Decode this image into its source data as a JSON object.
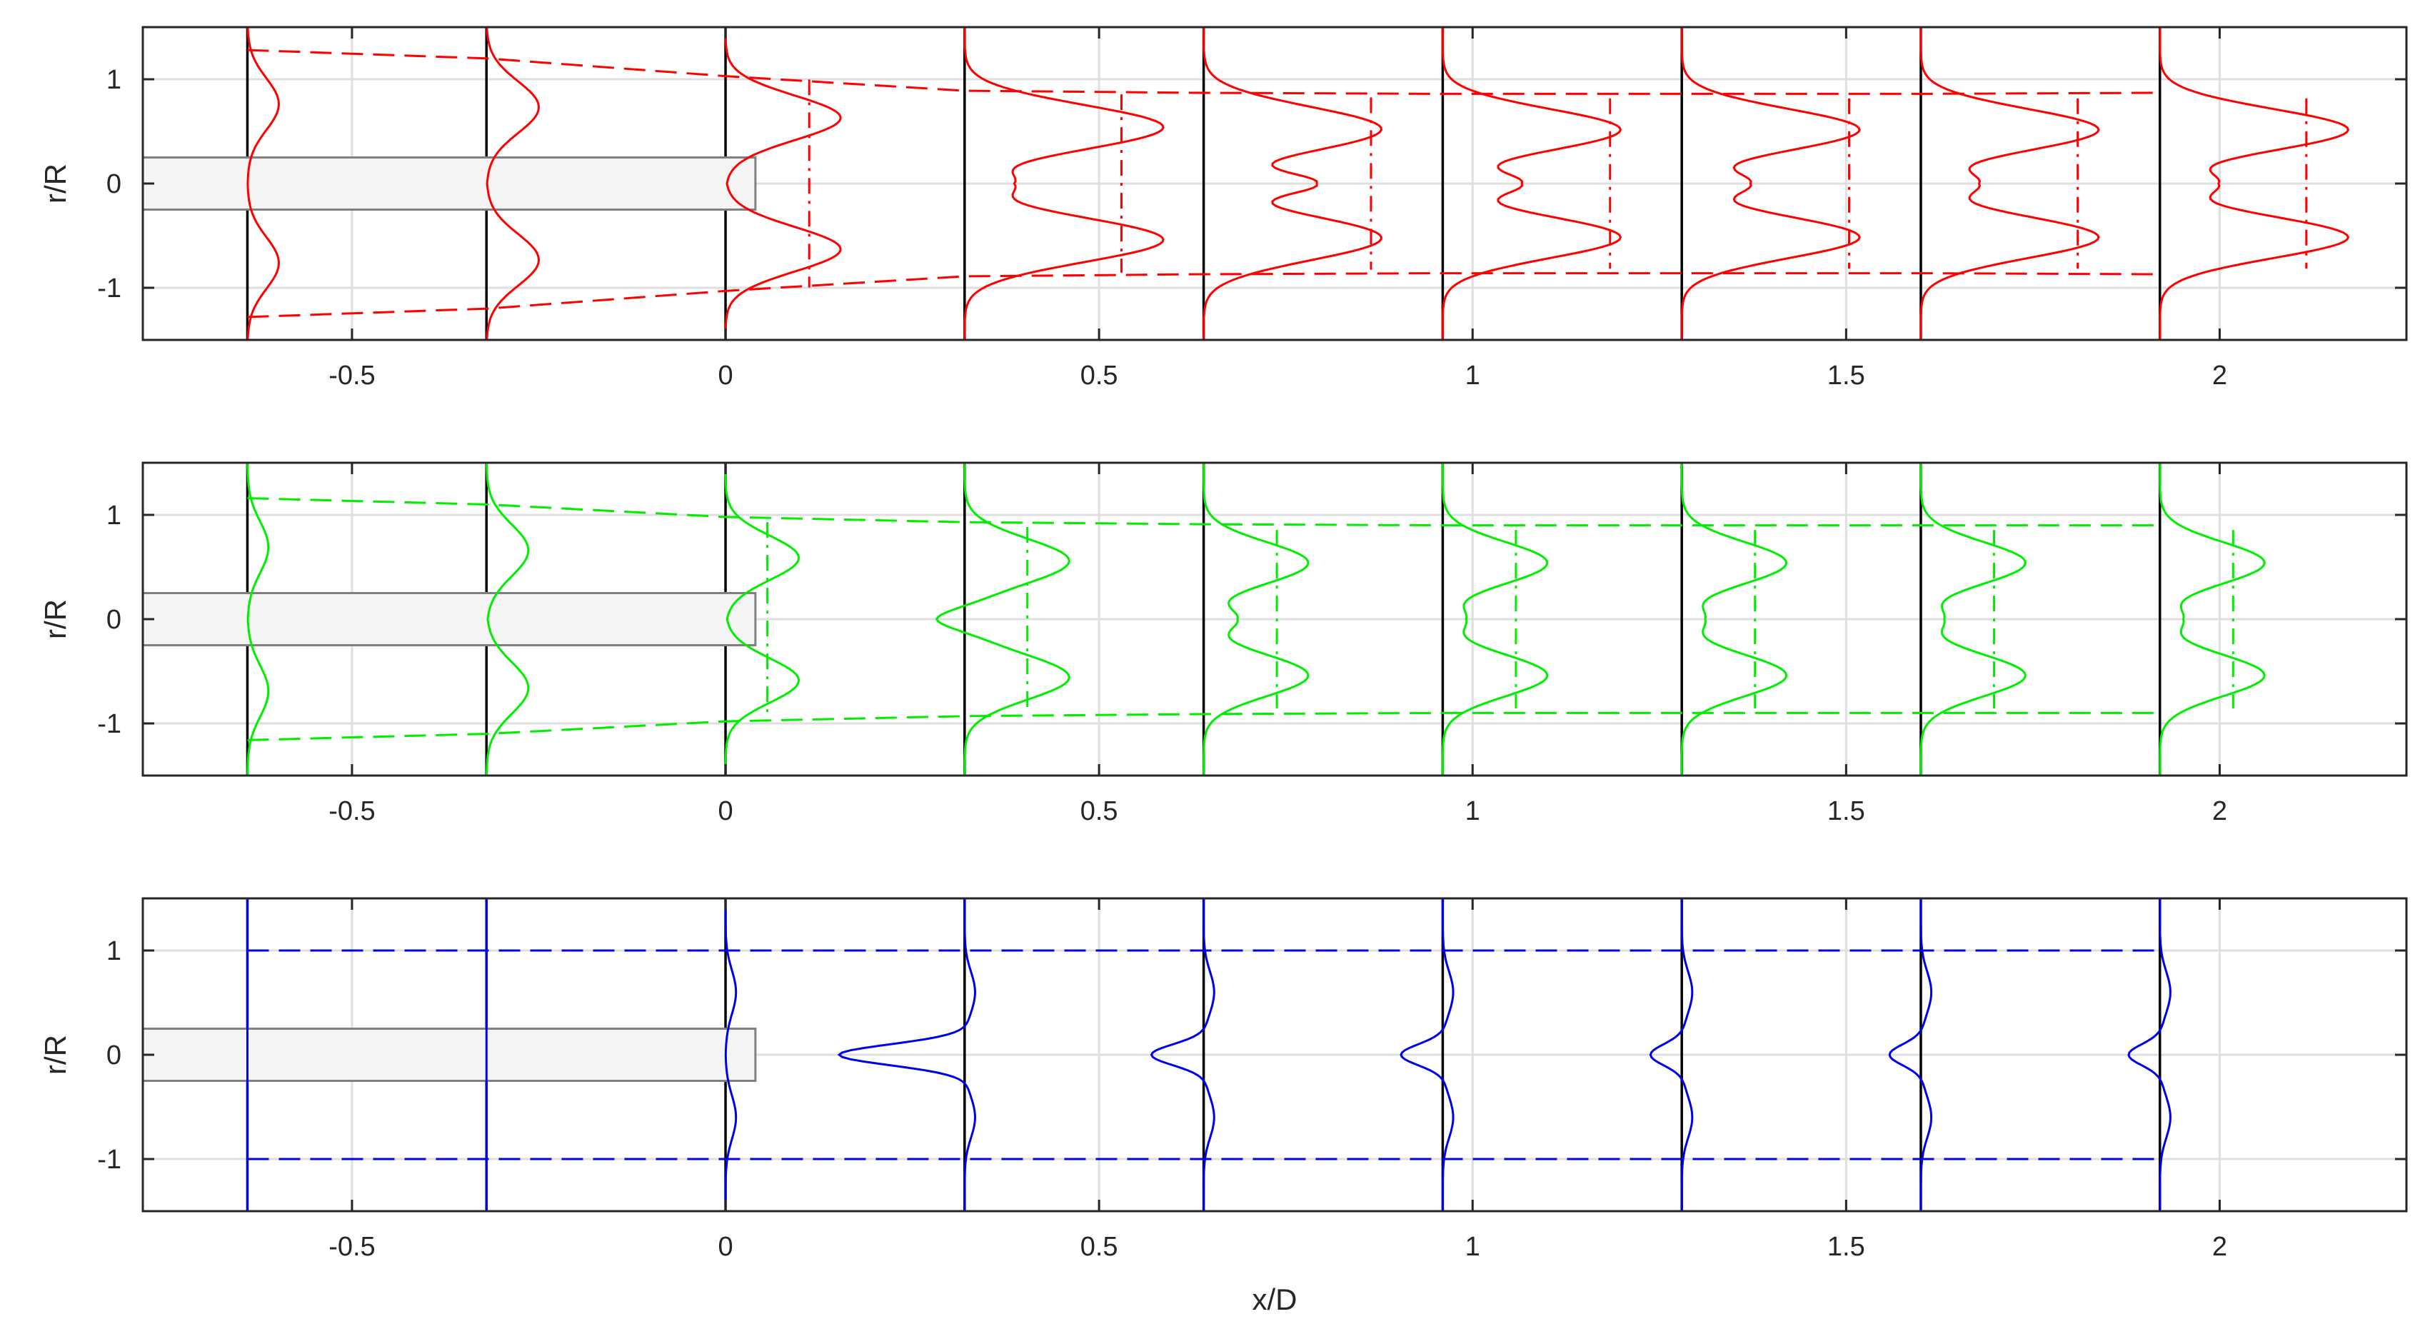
{
  "chart_data": [
    {
      "type": "line",
      "panel": "top",
      "color": "#ff0000",
      "xlabel": "",
      "ylabel": "r/R",
      "xlim": [
        -0.78,
        2.25
      ],
      "ylim": [
        -1.5,
        1.5
      ],
      "xticks": [
        -0.5,
        0,
        0.5,
        1,
        1.5,
        2
      ],
      "xtick_labels": [
        "-0.5",
        "0",
        "0.5",
        "1",
        "1.5",
        "2"
      ],
      "yticks": [
        -1,
        0,
        1
      ],
      "ytick_labels": [
        "-1",
        "0",
        "1"
      ],
      "grid": true,
      "body": {
        "x0": -0.78,
        "x1": 0.04,
        "r": 0.25
      },
      "stations": [
        -0.64,
        -0.32,
        0.0,
        0.32,
        0.64,
        0.96,
        1.28,
        1.6,
        1.92
      ],
      "profiles": [
        {
          "station": -0.64,
          "amp": 0.03,
          "center_amp": 0.0,
          "half_width": 1.27,
          "sigma": 0.35
        },
        {
          "station": -0.32,
          "amp": 0.05,
          "center_amp": 0.0,
          "half_width": 1.22,
          "sigma": 0.35
        },
        {
          "station": 0.0,
          "amp": 0.11,
          "center_amp": 0.0,
          "half_width": 1.05,
          "sigma": 0.3
        },
        {
          "station": 0.32,
          "amp": 0.19,
          "center_amp": 0.04,
          "half_width": 0.9,
          "sigma": 0.3
        },
        {
          "station": 0.64,
          "amp": 0.17,
          "center_amp": 0.1,
          "half_width": 0.87,
          "sigma": 0.3
        },
        {
          "station": 0.96,
          "amp": 0.17,
          "center_amp": 0.07,
          "half_width": 0.86,
          "sigma": 0.28
        },
        {
          "station": 1.28,
          "amp": 0.17,
          "center_amp": 0.06,
          "half_width": 0.86,
          "sigma": 0.28
        },
        {
          "station": 1.6,
          "amp": 0.17,
          "center_amp": 0.05,
          "half_width": 0.86,
          "sigma": 0.28
        },
        {
          "station": 1.92,
          "amp": 0.18,
          "center_amp": 0.05,
          "half_width": 0.86,
          "sigma": 0.28
        }
      ],
      "mean_line_offsets": [
        0.0,
        0.0,
        0.08,
        0.15,
        0.16,
        0.16,
        0.16,
        0.15,
        0.14
      ],
      "envelope": [
        {
          "x": -0.64,
          "r": 1.28
        },
        {
          "x": -0.32,
          "r": 1.2
        },
        {
          "x": 0.0,
          "r": 1.03
        },
        {
          "x": 0.32,
          "r": 0.89
        },
        {
          "x": 0.64,
          "r": 0.87
        },
        {
          "x": 0.96,
          "r": 0.86
        },
        {
          "x": 1.28,
          "r": 0.86
        },
        {
          "x": 1.6,
          "r": 0.86
        },
        {
          "x": 1.92,
          "r": 0.87
        }
      ]
    },
    {
      "type": "line",
      "panel": "middle",
      "color": "#00ee00",
      "xlabel": "",
      "ylabel": "r/R",
      "xlim": [
        -0.78,
        2.25
      ],
      "ylim": [
        -1.5,
        1.5
      ],
      "xticks": [
        -0.5,
        0,
        0.5,
        1,
        1.5,
        2
      ],
      "xtick_labels": [
        "-0.5",
        "0",
        "0.5",
        "1",
        "1.5",
        "2"
      ],
      "yticks": [
        -1,
        0,
        1
      ],
      "ytick_labels": [
        "-1",
        "0",
        "1"
      ],
      "grid": true,
      "body": {
        "x0": -0.78,
        "x1": 0.04,
        "r": 0.25
      },
      "stations": [
        -0.64,
        -0.32,
        0.0,
        0.32,
        0.64,
        0.96,
        1.28,
        1.6,
        1.92
      ],
      "profiles": [
        {
          "station": -0.64,
          "amp": 0.02,
          "center_amp": 0.0,
          "half_width": 1.15,
          "sigma": 0.35
        },
        {
          "station": -0.32,
          "amp": 0.04,
          "center_amp": 0.0,
          "half_width": 1.1,
          "sigma": 0.35
        },
        {
          "station": 0.0,
          "amp": 0.07,
          "center_amp": 0.0,
          "half_width": 0.98,
          "sigma": 0.3
        },
        {
          "station": 0.32,
          "amp": 0.1,
          "center_amp": -0.03,
          "half_width": 0.93,
          "sigma": 0.3
        },
        {
          "station": 0.64,
          "amp": 0.1,
          "center_amp": 0.03,
          "half_width": 0.9,
          "sigma": 0.28
        },
        {
          "station": 0.96,
          "amp": 0.1,
          "center_amp": 0.02,
          "half_width": 0.9,
          "sigma": 0.28
        },
        {
          "station": 1.28,
          "amp": 0.1,
          "center_amp": 0.02,
          "half_width": 0.9,
          "sigma": 0.28
        },
        {
          "station": 1.6,
          "amp": 0.1,
          "center_amp": 0.02,
          "half_width": 0.9,
          "sigma": 0.28
        },
        {
          "station": 1.92,
          "amp": 0.1,
          "center_amp": 0.02,
          "half_width": 0.9,
          "sigma": 0.28
        }
      ],
      "mean_line_offsets": [
        0.0,
        0.0,
        0.04,
        0.06,
        0.07,
        0.07,
        0.07,
        0.07,
        0.07
      ],
      "envelope": [
        {
          "x": -0.64,
          "r": 1.16
        },
        {
          "x": -0.32,
          "r": 1.1
        },
        {
          "x": 0.0,
          "r": 0.98
        },
        {
          "x": 0.32,
          "r": 0.93
        },
        {
          "x": 0.64,
          "r": 0.91
        },
        {
          "x": 0.96,
          "r": 0.9
        },
        {
          "x": 1.28,
          "r": 0.9
        },
        {
          "x": 1.6,
          "r": 0.9
        },
        {
          "x": 1.92,
          "r": 0.9
        }
      ]
    },
    {
      "type": "line",
      "panel": "bottom",
      "color": "#0000ee",
      "xlabel": "x/D",
      "ylabel": "r/R",
      "xlim": [
        -0.78,
        2.25
      ],
      "ylim": [
        -1.5,
        1.5
      ],
      "xticks": [
        -0.5,
        0,
        0.5,
        1,
        1.5,
        2
      ],
      "xtick_labels": [
        "-0.5",
        "0",
        "0.5",
        "1",
        "1.5",
        "2"
      ],
      "yticks": [
        -1,
        0,
        1
      ],
      "ytick_labels": [
        "-1",
        "0",
        "1"
      ],
      "grid": true,
      "body": {
        "x0": -0.78,
        "x1": 0.04,
        "r": 0.25
      },
      "stations": [
        -0.64,
        -0.32,
        0.0,
        0.32,
        0.64,
        0.96,
        1.28,
        1.6,
        1.92
      ],
      "profiles": [
        {
          "station": -0.64,
          "amp": 0.0,
          "center_amp": 0.0,
          "half_width": 1.0,
          "sigma": 0.3
        },
        {
          "station": -0.32,
          "amp": 0.0,
          "center_amp": 0.0,
          "half_width": 1.0,
          "sigma": 0.3
        },
        {
          "station": 0.0,
          "amp": 0.01,
          "center_amp": 0.0,
          "half_width": 1.0,
          "sigma": 0.3
        },
        {
          "station": 0.32,
          "amp": 0.01,
          "center_amp": -0.12,
          "half_width": 1.0,
          "sigma": 0.28
        },
        {
          "station": 0.64,
          "amp": 0.01,
          "center_amp": -0.05,
          "half_width": 1.0,
          "sigma": 0.28
        },
        {
          "station": 0.96,
          "amp": 0.01,
          "center_amp": -0.04,
          "half_width": 1.0,
          "sigma": 0.28
        },
        {
          "station": 1.28,
          "amp": 0.01,
          "center_amp": -0.03,
          "half_width": 1.0,
          "sigma": 0.28
        },
        {
          "station": 1.6,
          "amp": 0.01,
          "center_amp": -0.03,
          "half_width": 1.0,
          "sigma": 0.28
        },
        {
          "station": 1.92,
          "amp": 0.01,
          "center_amp": -0.03,
          "half_width": 1.0,
          "sigma": 0.28
        }
      ],
      "mean_line_offsets": [
        0.0,
        0.0,
        0.0,
        0.0,
        0.0,
        0.0,
        0.0,
        0.0,
        0.0
      ],
      "envelope": [
        {
          "x": -0.64,
          "r": 1.0
        },
        {
          "x": -0.32,
          "r": 1.0
        },
        {
          "x": 0.0,
          "r": 1.0
        },
        {
          "x": 0.32,
          "r": 1.0
        },
        {
          "x": 0.64,
          "r": 1.0
        },
        {
          "x": 0.96,
          "r": 1.0
        },
        {
          "x": 1.28,
          "r": 1.0
        },
        {
          "x": 1.6,
          "r": 1.0
        },
        {
          "x": 1.92,
          "r": 1.0
        }
      ]
    }
  ]
}
